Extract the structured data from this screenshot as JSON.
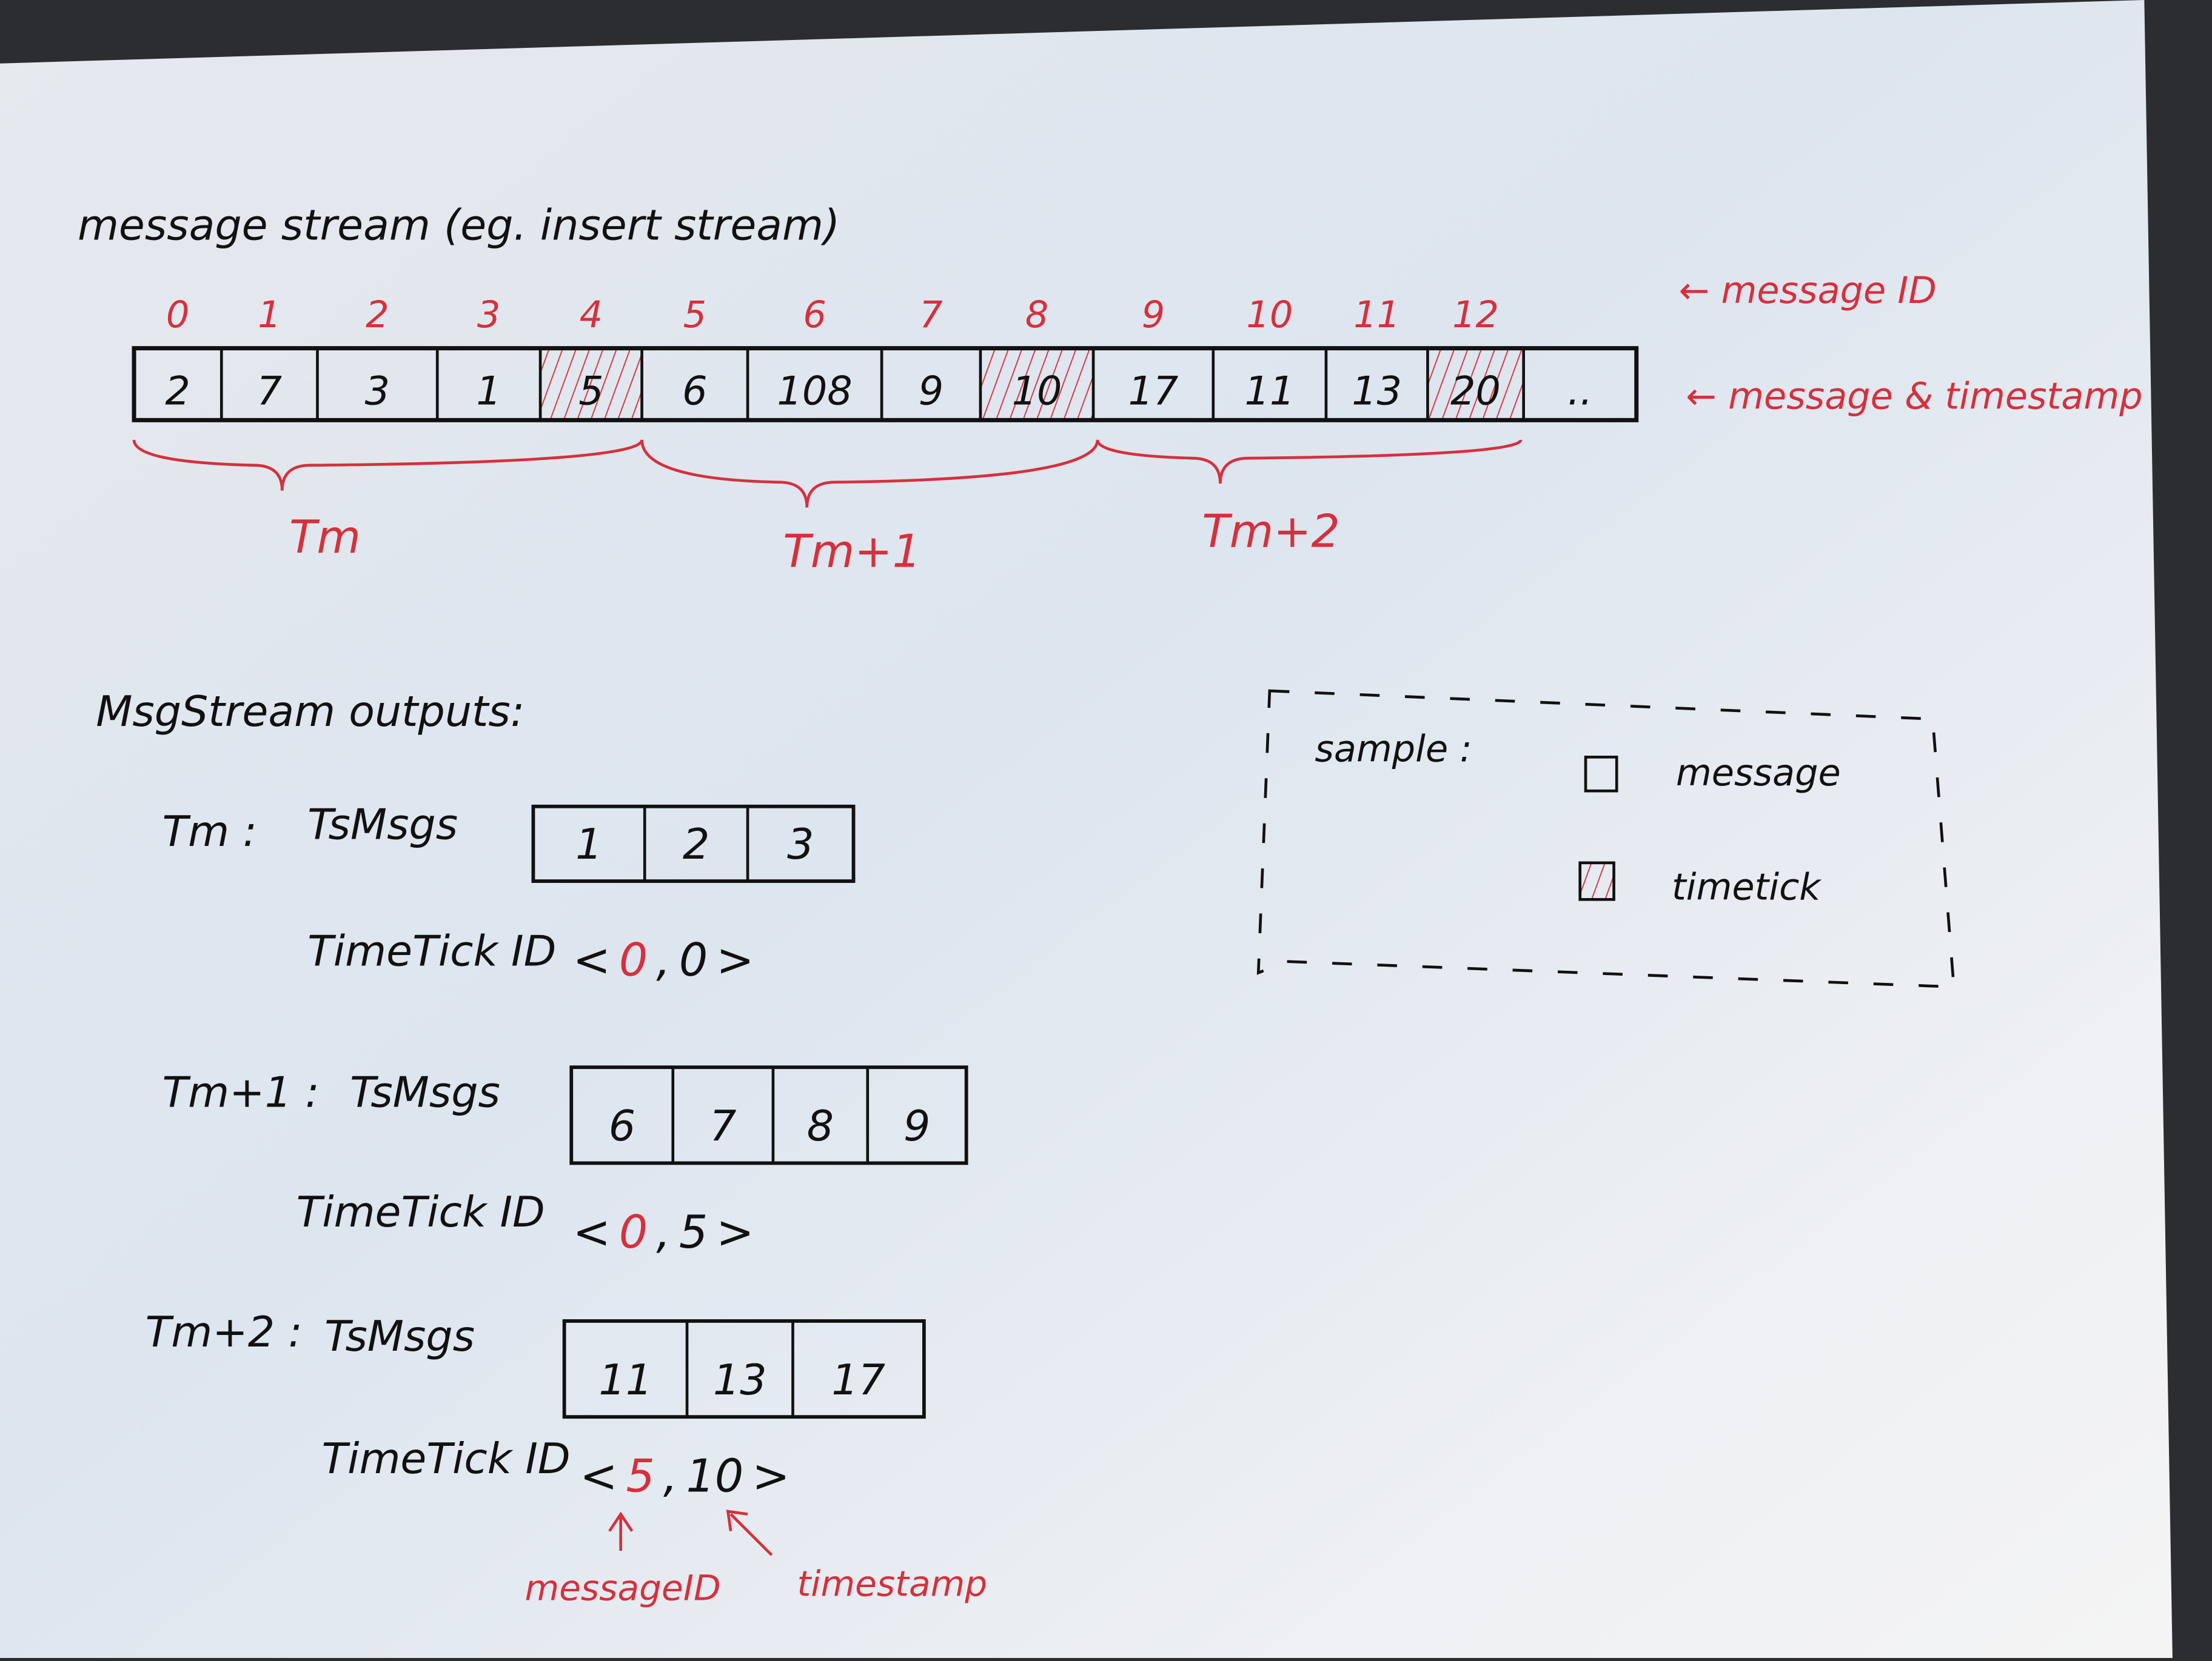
{
  "title": "message stream (eg. insert stream)",
  "stream": {
    "message_ids": [
      "0",
      "1",
      "2",
      "3",
      "4",
      "5",
      "6",
      "7",
      "8",
      "9",
      "10",
      "11",
      "12"
    ],
    "timestamps": [
      "2",
      "7",
      "3",
      "1",
      "5",
      "6",
      "108",
      "9",
      "10",
      "17",
      "11",
      "13",
      "20",
      ".."
    ],
    "timetick_cells": [
      4,
      8,
      12
    ],
    "message_id_label": "← message ID",
    "timestamp_label": "← message & timestamp",
    "periods": [
      "Tm",
      "Tm+1",
      "Tm+2"
    ]
  },
  "outputs": {
    "heading": "MsgStream outputs:",
    "rows": [
      {
        "period": "Tm :",
        "msgs_label": "TsMsgs",
        "msgs": [
          "1",
          "2",
          "3"
        ],
        "tt_label": "TimeTick ID",
        "tt_open": "<",
        "tt_id": "0",
        "tt_sep": ",",
        "tt_ts": "0",
        "tt_close": ">"
      },
      {
        "period": "Tm+1 :",
        "msgs_label": "TsMsgs",
        "msgs": [
          "6",
          "7",
          "8",
          "9"
        ],
        "tt_label": "TimeTick ID",
        "tt_open": "<",
        "tt_id": "0",
        "tt_sep": ",",
        "tt_ts": "5",
        "tt_close": ">"
      },
      {
        "period": "Tm+2 :",
        "msgs_label": "TsMsgs",
        "msgs": [
          "11",
          "13",
          "17"
        ],
        "tt_label": "TimeTick ID",
        "tt_open": "<",
        "tt_id": "5",
        "tt_sep": ",",
        "tt_ts": "10",
        "tt_close": ">"
      }
    ],
    "annotation_message_id": "messageID",
    "annotation_timestamp": "timestamp"
  },
  "legend": {
    "title": "sample :",
    "items": [
      {
        "label": "message",
        "kind": "message"
      },
      {
        "label": "timetick",
        "kind": "timetick"
      }
    ]
  },
  "colors": {
    "ink": "#111111",
    "red_pen": "#d6303c",
    "paper": "#e9edf3"
  }
}
